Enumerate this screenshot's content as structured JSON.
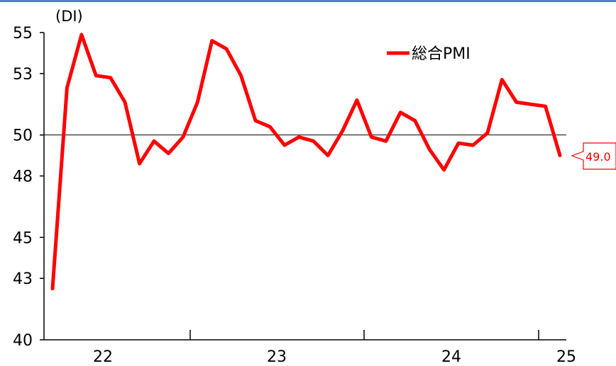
{
  "chart_data": {
    "type": "line",
    "y_unit": "(DI)",
    "ylim": [
      40,
      55
    ],
    "y_ticks": [
      40,
      43,
      45,
      48,
      50,
      53,
      55
    ],
    "x_tick_labels": [
      "22",
      "23",
      "24",
      "25"
    ],
    "reference_line": 50,
    "grid": false,
    "legend_position": "top-right",
    "series": [
      {
        "name": "総合PMI",
        "color": "#ff0000",
        "values": [
          42.5,
          52.3,
          54.9,
          52.9,
          52.8,
          51.6,
          48.6,
          49.7,
          49.1,
          49.9,
          51.6,
          54.6,
          54.2,
          52.9,
          50.7,
          50.4,
          49.5,
          49.9,
          49.7,
          49.0,
          50.2,
          51.7,
          49.9,
          49.7,
          51.1,
          50.7,
          49.3,
          48.3,
          49.6,
          49.5,
          50.1,
          52.7,
          51.6,
          51.5,
          51.4,
          49.0
        ],
        "last_value_label": "49.0"
      }
    ]
  }
}
